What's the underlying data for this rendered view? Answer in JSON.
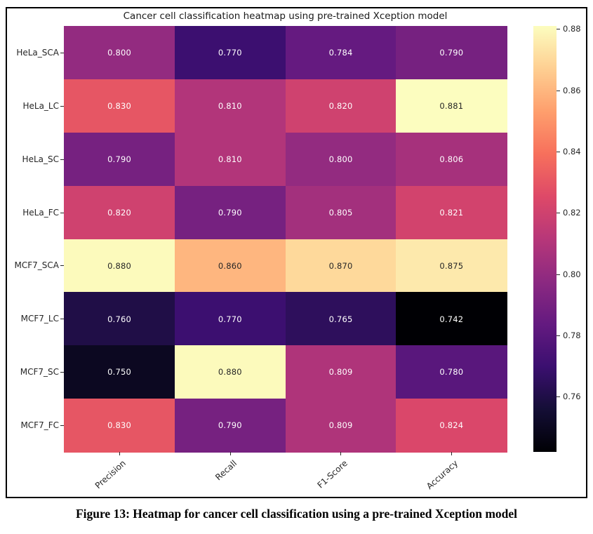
{
  "figure": {
    "caption": "Figure 13: Heatmap for cancer cell classification using a pre-trained Xception model"
  },
  "chart_data": {
    "type": "heatmap",
    "title": "Cancer cell classification heatmap using pre-trained Xception model",
    "rows": [
      "HeLa_SCA",
      "HeLa_LC",
      "HeLa_SC",
      "HeLa_FC",
      "MCF7_SCA",
      "MCF7_LC",
      "MCF7_SC",
      "MCF7_FC"
    ],
    "columns": [
      "Precision",
      "Recall",
      "F1-Score",
      "Accuracy"
    ],
    "values": [
      [
        0.8,
        0.77,
        0.784,
        0.79
      ],
      [
        0.83,
        0.81,
        0.82,
        0.881
      ],
      [
        0.79,
        0.81,
        0.8,
        0.806
      ],
      [
        0.82,
        0.79,
        0.805,
        0.821
      ],
      [
        0.88,
        0.86,
        0.87,
        0.875
      ],
      [
        0.76,
        0.77,
        0.765,
        0.742
      ],
      [
        0.75,
        0.88,
        0.809,
        0.78
      ],
      [
        0.83,
        0.79,
        0.809,
        0.824
      ]
    ],
    "annotation_decimals": 3,
    "colormap": {
      "name": "magma",
      "vmin": 0.742,
      "vmax": 0.881,
      "stops": [
        "#000004",
        "#140e36",
        "#3b0f70",
        "#641a80",
        "#8c2981",
        "#b73779",
        "#de4968",
        "#f7705c",
        "#fe9f6d",
        "#fecf92",
        "#fcfdbf"
      ]
    },
    "colorbar_ticks": [
      0.88,
      0.86,
      0.84,
      0.82,
      0.8,
      0.78,
      0.76
    ],
    "annotation_colors": {
      "light_text": "#ffffff",
      "dark_text": "#262626"
    },
    "legend_position": "right",
    "grid": false
  }
}
